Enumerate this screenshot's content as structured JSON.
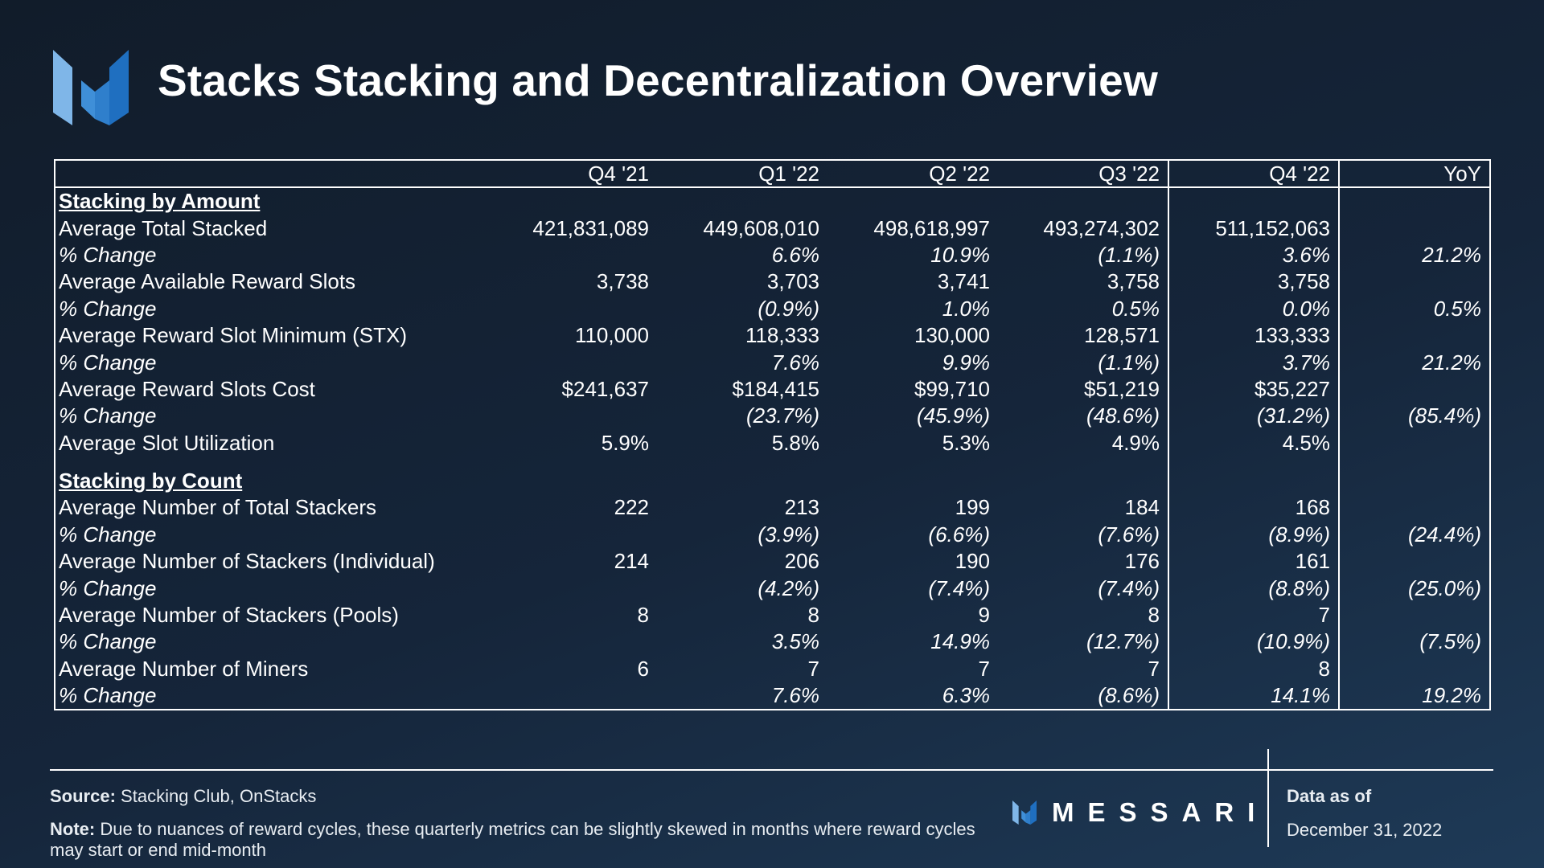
{
  "title": "Stacks Stacking and Decentralization Overview",
  "colors": {
    "logo_light": "#7fb6e8",
    "logo_mid": "#3f8fd8",
    "logo_dark": "#1f6fc0",
    "background": "#15253a"
  },
  "table": {
    "headers": [
      "",
      "Q4 '21",
      "Q1 '22",
      "Q2 '22",
      "Q3 '22",
      "Q4 '22",
      "YoY"
    ],
    "section1": "Stacking by Amount",
    "section2": "Stacking by Count",
    "rows_amount": [
      [
        "Average Total Stacked",
        "421,831,089",
        "449,608,010",
        "498,618,997",
        "493,274,302",
        "511,152,063",
        ""
      ],
      [
        "% Change",
        "",
        "6.6%",
        "10.9%",
        "(1.1%)",
        "3.6%",
        "21.2%"
      ],
      [
        "Average Available Reward Slots",
        "3,738",
        "3,703",
        "3,741",
        "3,758",
        "3,758",
        ""
      ],
      [
        "% Change",
        "",
        "(0.9%)",
        "1.0%",
        "0.5%",
        "0.0%",
        "0.5%"
      ],
      [
        "Average Reward Slot Minimum (STX)",
        "110,000",
        "118,333",
        "130,000",
        "128,571",
        "133,333",
        ""
      ],
      [
        "% Change",
        "",
        "7.6%",
        "9.9%",
        "(1.1%)",
        "3.7%",
        "21.2%"
      ],
      [
        "Average Reward Slots Cost",
        "$241,637",
        "$184,415",
        "$99,710",
        "$51,219",
        "$35,227",
        ""
      ],
      [
        "% Change",
        "",
        "(23.7%)",
        "(45.9%)",
        "(48.6%)",
        "(31.2%)",
        "(85.4%)"
      ],
      [
        "Average Slot Utilization",
        "5.9%",
        "5.8%",
        "5.3%",
        "4.9%",
        "4.5%",
        ""
      ]
    ],
    "rows_count": [
      [
        "Average Number of Total Stackers",
        "222",
        "213",
        "199",
        "184",
        "168",
        ""
      ],
      [
        "% Change",
        "",
        "(3.9%)",
        "(6.6%)",
        "(7.6%)",
        "(8.9%)",
        "(24.4%)"
      ],
      [
        "Average Number of Stackers (Individual)",
        "214",
        "206",
        "190",
        "176",
        "161",
        ""
      ],
      [
        "% Change",
        "",
        "(4.2%)",
        "(7.4%)",
        "(7.4%)",
        "(8.8%)",
        "(25.0%)"
      ],
      [
        "Average Number of Stackers (Pools)",
        "8",
        "8",
        "9",
        "8",
        "7",
        ""
      ],
      [
        "% Change",
        "",
        "3.5%",
        "14.9%",
        "(12.7%)",
        "(10.9%)",
        "(7.5%)"
      ],
      [
        "Average Number of Miners",
        "6",
        "7",
        "7",
        "7",
        "8",
        ""
      ],
      [
        "% Change",
        "",
        "7.6%",
        "6.3%",
        "(8.6%)",
        "14.1%",
        "19.2%"
      ]
    ]
  },
  "footer": {
    "source_label": "Source:",
    "source_text": "Stacking Club, OnStacks",
    "note_label": "Note:",
    "note_text": "Due to nuances of reward cycles, these quarterly metrics can be slightly skewed in months where reward cycles may start or end mid-month",
    "brand": "MESSARI",
    "asof_label": "Data as of",
    "asof_date": "December 31, 2022"
  }
}
